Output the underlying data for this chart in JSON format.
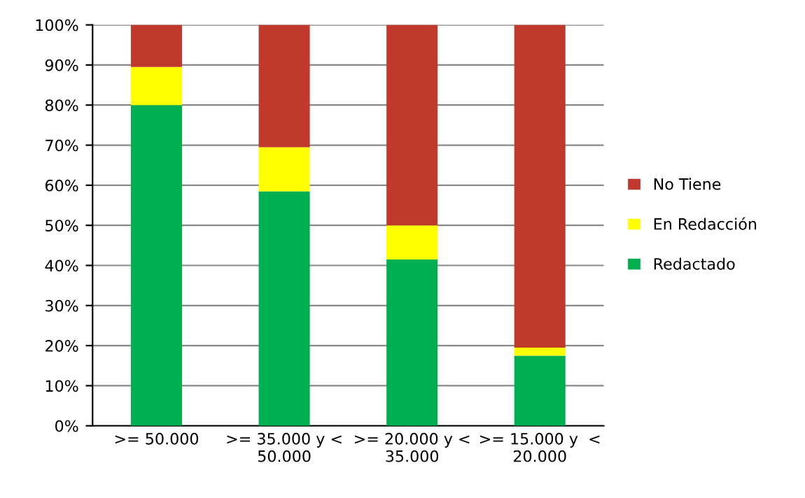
{
  "chart_data": {
    "type": "bar",
    "stacked": true,
    "categories": [
      ">= 50.000",
      ">= 35.000 y <\n50.000",
      ">= 20.000 y <\n35.000",
      ">= 15.000 y  <\n20.000"
    ],
    "series": [
      {
        "name": "Redactado",
        "color": "#00b050",
        "values": [
          80,
          58.5,
          41.5,
          17.5
        ]
      },
      {
        "name": "En Redacción",
        "color": "#ffff00",
        "values": [
          9.5,
          11,
          8.5,
          2
        ]
      },
      {
        "name": "No Tiene",
        "color": "#c0392b",
        "values": [
          10.5,
          30.5,
          50,
          80.5
        ]
      }
    ],
    "ylim": [
      0,
      100
    ],
    "yticks": [
      {
        "value": 0,
        "label": "0%"
      },
      {
        "value": 10,
        "label": "10%"
      },
      {
        "value": 20,
        "label": "20%"
      },
      {
        "value": 30,
        "label": "30%"
      },
      {
        "value": 40,
        "label": "40%"
      },
      {
        "value": 50,
        "label": "50%"
      },
      {
        "value": 60,
        "label": "60%"
      },
      {
        "value": 70,
        "label": "70%"
      },
      {
        "value": 80,
        "label": "80%"
      },
      {
        "value": 90,
        "label": "90%"
      },
      {
        "value": 100,
        "label": "100%"
      }
    ],
    "grid": "y",
    "legend": "right"
  }
}
